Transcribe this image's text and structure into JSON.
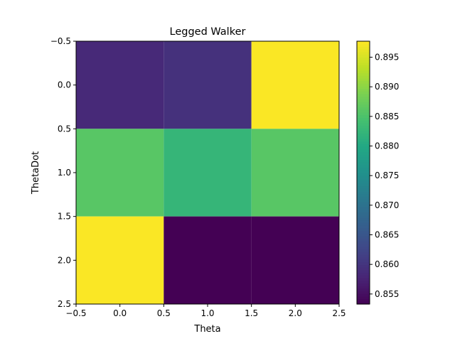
{
  "chart_data": {
    "type": "heatmap",
    "title": "Legged Walker",
    "xlabel": "Theta",
    "ylabel": "ThetaDot",
    "xlim": [
      -0.5,
      2.5
    ],
    "ylim": [
      2.5,
      -0.5
    ],
    "x_ticks": [
      "−0.5",
      "0.0",
      "0.5",
      "1.0",
      "1.5",
      "2.0",
      "2.5"
    ],
    "y_ticks": [
      "−0.5",
      "0.0",
      "0.5",
      "1.0",
      "1.5",
      "2.0",
      "2.5"
    ],
    "x_tick_values": [
      -0.5,
      0,
      0.5,
      1,
      1.5,
      2,
      2.5
    ],
    "y_tick_values": [
      -0.5,
      0,
      0.5,
      1,
      1.5,
      2,
      2.5
    ],
    "matrix": [
      [
        0.8585,
        0.8595,
        0.8975
      ],
      [
        0.886,
        0.8825,
        0.886
      ],
      [
        0.8975,
        0.8533,
        0.8533
      ]
    ],
    "colorbar": {
      "colormap": "viridis",
      "vmin": 0.8533,
      "vmax": 0.8977,
      "ticks": [
        0.855,
        0.86,
        0.865,
        0.87,
        0.875,
        0.88,
        0.885,
        0.89,
        0.895
      ],
      "tick_labels": [
        "0.855",
        "0.860",
        "0.865",
        "0.870",
        "0.875",
        "0.880",
        "0.885",
        "0.890",
        "0.895"
      ]
    },
    "grid": false
  }
}
